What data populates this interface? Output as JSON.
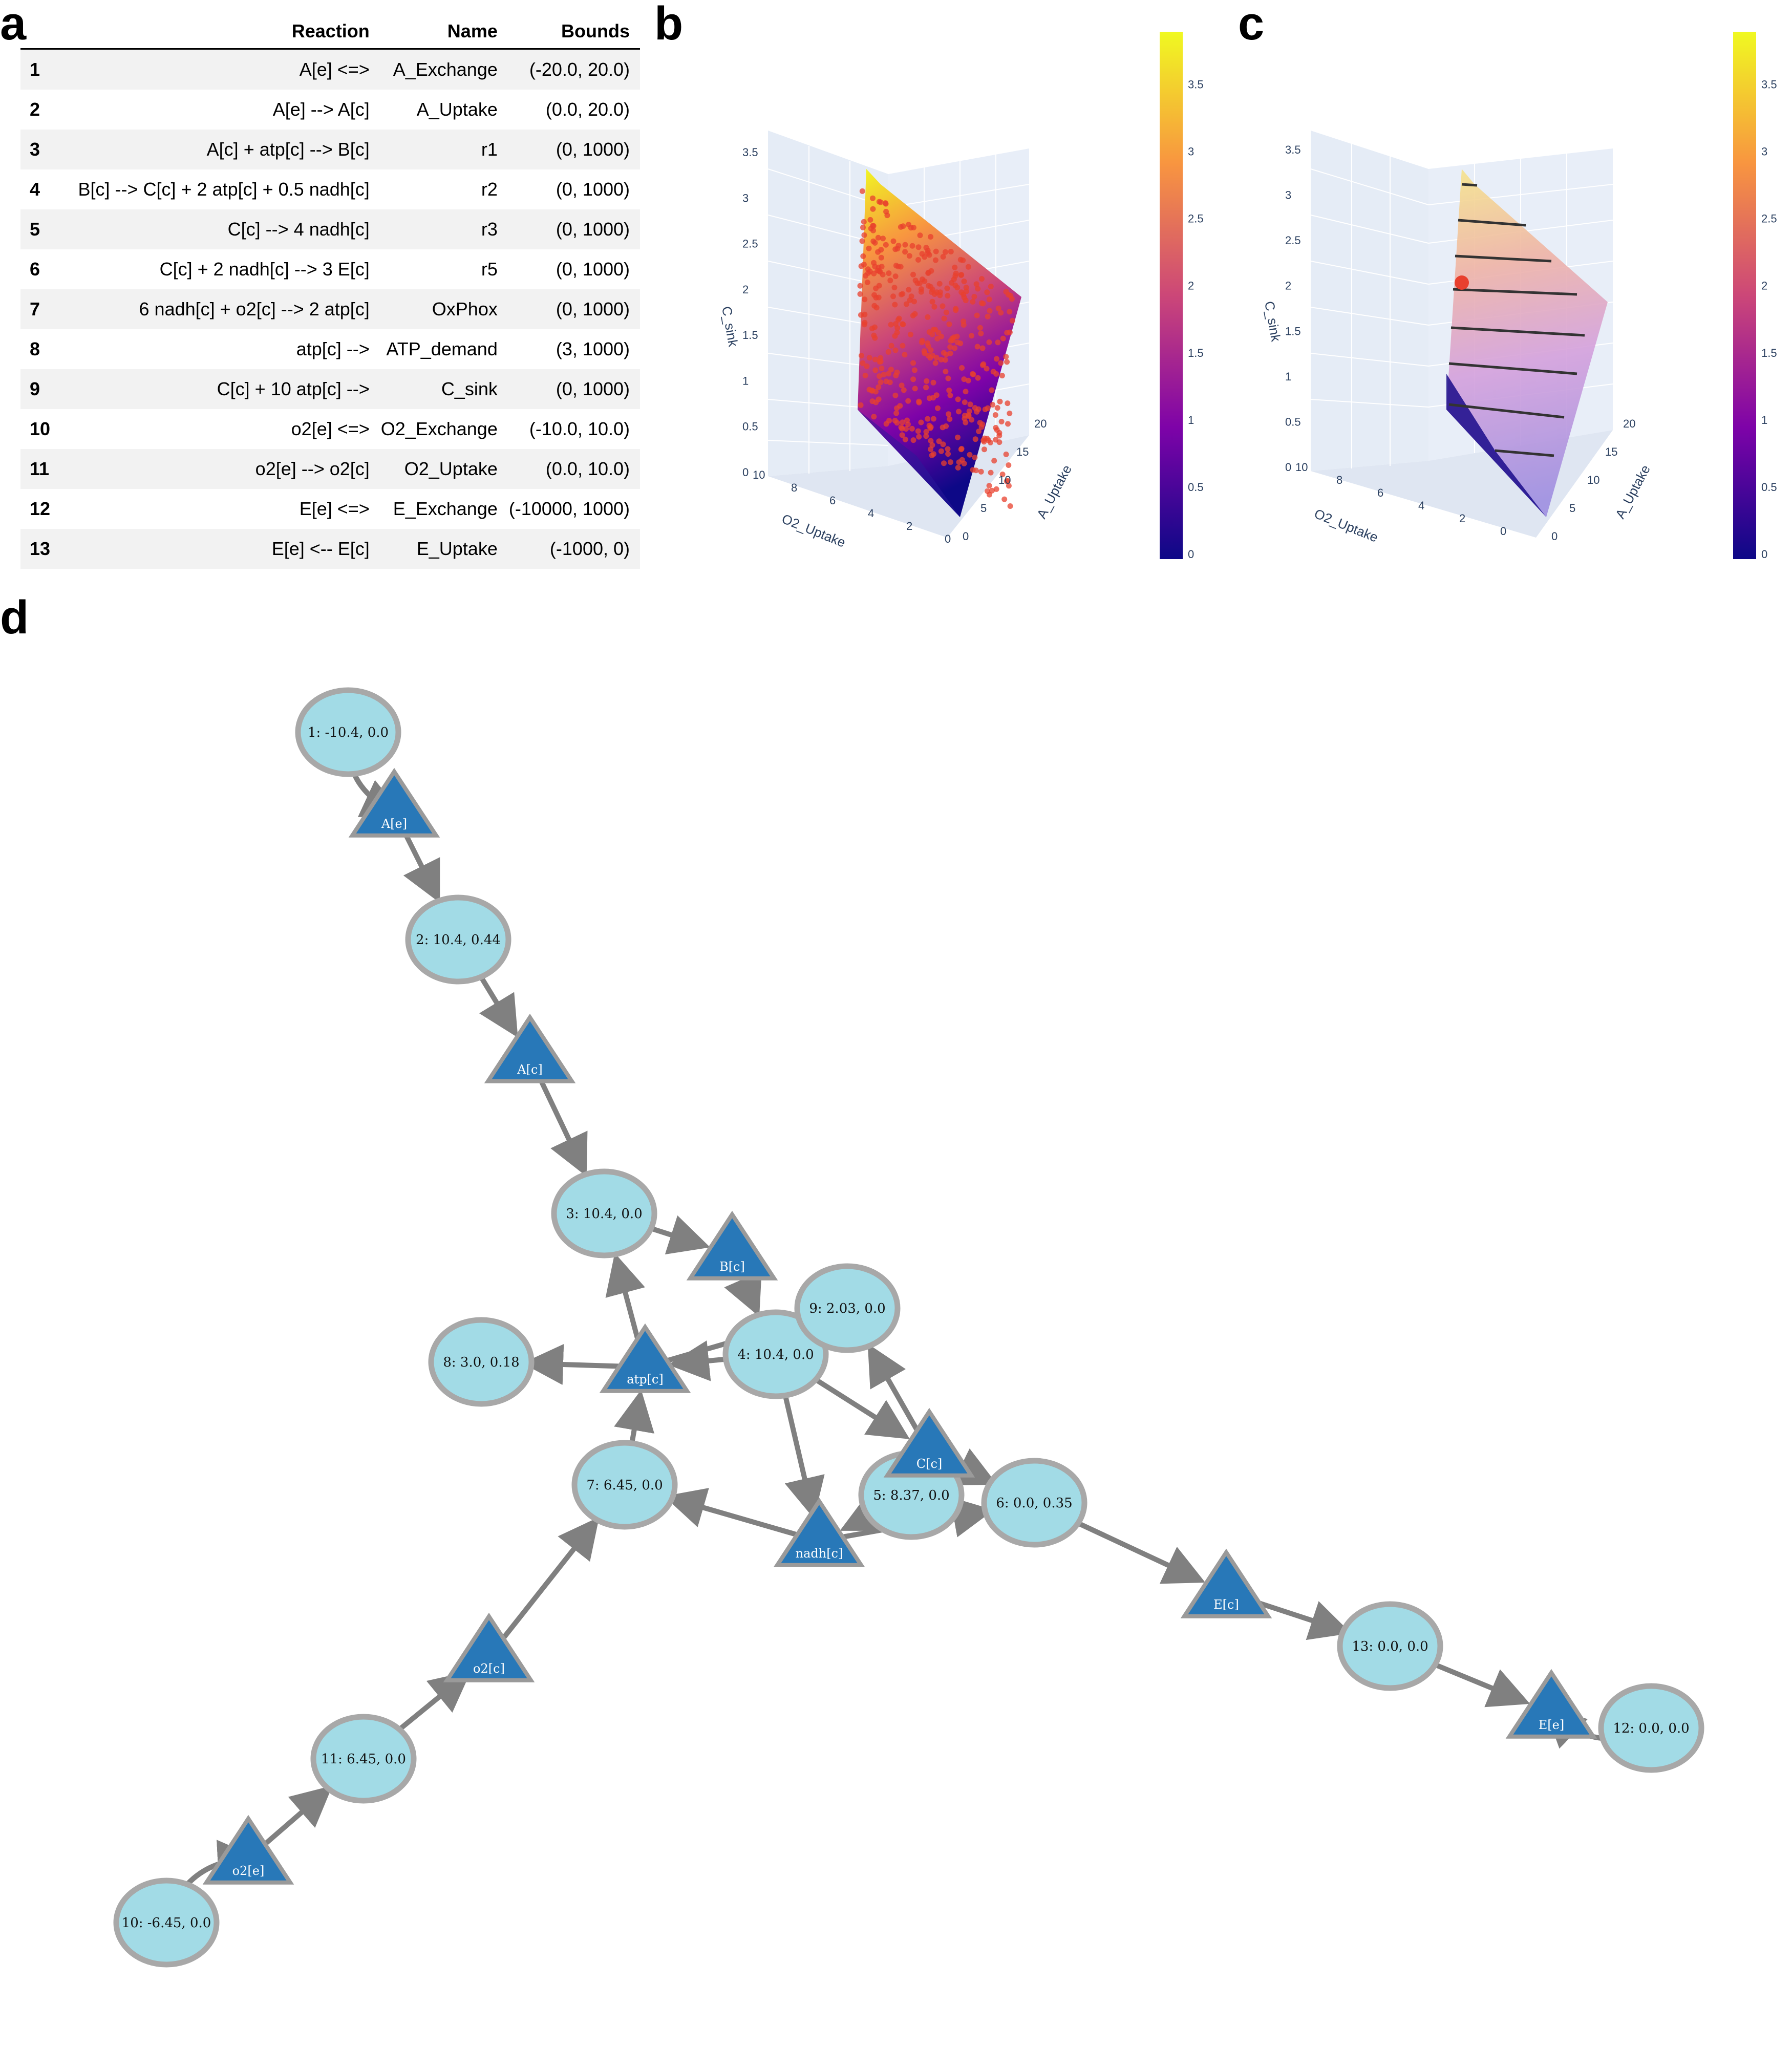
{
  "panels": {
    "a": "a",
    "b": "b",
    "c": "c",
    "d": "d"
  },
  "table": {
    "headers": {
      "reaction": "Reaction",
      "name": "Name",
      "bounds": "Bounds"
    },
    "rows": [
      {
        "id": "1",
        "reaction": "A[e] <=>",
        "name": "A_Exchange",
        "bounds": "(-20.0, 20.0)"
      },
      {
        "id": "2",
        "reaction": "A[e] --> A[c]",
        "name": "A_Uptake",
        "bounds": "(0.0, 20.0)"
      },
      {
        "id": "3",
        "reaction": "A[c] + atp[c] --> B[c]",
        "name": "r1",
        "bounds": "(0, 1000)"
      },
      {
        "id": "4",
        "reaction": "B[c] --> C[c] + 2 atp[c] + 0.5 nadh[c]",
        "name": "r2",
        "bounds": "(0, 1000)"
      },
      {
        "id": "5",
        "reaction": "C[c] --> 4 nadh[c]",
        "name": "r3",
        "bounds": "(0, 1000)"
      },
      {
        "id": "6",
        "reaction": "C[c] + 2 nadh[c] --> 3 E[c]",
        "name": "r5",
        "bounds": "(0, 1000)"
      },
      {
        "id": "7",
        "reaction": "6 nadh[c] + o2[c] --> 2 atp[c]",
        "name": "OxPhox",
        "bounds": "(0, 1000)"
      },
      {
        "id": "8",
        "reaction": "atp[c] -->",
        "name": "ATP_demand",
        "bounds": "(3, 1000)"
      },
      {
        "id": "9",
        "reaction": "C[c] + 10 atp[c] -->",
        "name": "C_sink",
        "bounds": "(0, 1000)"
      },
      {
        "id": "10",
        "reaction": "o2[e] <=>",
        "name": "O2_Exchange",
        "bounds": "(-10.0, 10.0)"
      },
      {
        "id": "11",
        "reaction": "o2[e] --> o2[c]",
        "name": "O2_Uptake",
        "bounds": "(0.0, 10.0)"
      },
      {
        "id": "12",
        "reaction": "E[e] <=>",
        "name": "E_Exchange",
        "bounds": "(-10000, 1000)"
      },
      {
        "id": "13",
        "reaction": "E[e] <-- E[c]",
        "name": "E_Uptake",
        "bounds": "(-1000, 0)"
      }
    ]
  },
  "plots": {
    "z_axis_label": "C_sink",
    "x_axis_label": "O2_Uptake",
    "y_axis_label": "A_Uptake",
    "z_ticks": [
      "0",
      "0.5",
      "1",
      "1.5",
      "2",
      "2.5",
      "3",
      "3.5"
    ],
    "x_ticks": [
      "10",
      "8",
      "6",
      "4",
      "2",
      "0"
    ],
    "y_ticks": [
      "0",
      "5",
      "10",
      "15",
      "20"
    ],
    "colorbar_ticks": [
      "0",
      "0.5",
      "1",
      "1.5",
      "2",
      "2.5",
      "3",
      "3.5"
    ],
    "colors": {
      "high": "#f0f921",
      "mid": "#cc4778",
      "low": "#0d0887",
      "marker": "#e8402e"
    }
  },
  "network": {
    "reactions": [
      {
        "id": "r1",
        "label": "1: -10.4, 0.0"
      },
      {
        "id": "r2",
        "label": "2: 10.4, 0.44"
      },
      {
        "id": "r3",
        "label": "3: 10.4, 0.0"
      },
      {
        "id": "r4",
        "label": "4: 10.4, 0.0"
      },
      {
        "id": "r5",
        "label": "5: 8.37, 0.0"
      },
      {
        "id": "r6",
        "label": "6: 0.0, 0.35"
      },
      {
        "id": "r7",
        "label": "7: 6.45, 0.0"
      },
      {
        "id": "r8",
        "label": "8: 3.0, 0.18"
      },
      {
        "id": "r9",
        "label": "9: 2.03, 0.0"
      },
      {
        "id": "r10",
        "label": "10: -6.45, 0.0"
      },
      {
        "id": "r11",
        "label": "11: 6.45, 0.0"
      },
      {
        "id": "r12",
        "label": "12: 0.0, 0.0"
      },
      {
        "id": "r13",
        "label": "13: 0.0, 0.0"
      }
    ],
    "metabolites": [
      {
        "id": "Ae",
        "label": "A[e]"
      },
      {
        "id": "Ac",
        "label": "A[c]"
      },
      {
        "id": "Bc",
        "label": "B[c]"
      },
      {
        "id": "atpc",
        "label": "atp[c]"
      },
      {
        "id": "Cc",
        "label": "C[c]"
      },
      {
        "id": "nadhc",
        "label": "nadh[c]"
      },
      {
        "id": "Ec",
        "label": "E[c]"
      },
      {
        "id": "Ee",
        "label": "E[e]"
      },
      {
        "id": "o2c",
        "label": "o2[c]"
      },
      {
        "id": "o2e",
        "label": "o2[e]"
      }
    ],
    "colors": {
      "reaction_fill": "#a2dbe6",
      "reaction_stroke": "#a8a8a8",
      "metabolite_fill": "#2878b8",
      "metabolite_stroke": "#9a9a9a",
      "edge": "#808080"
    }
  }
}
